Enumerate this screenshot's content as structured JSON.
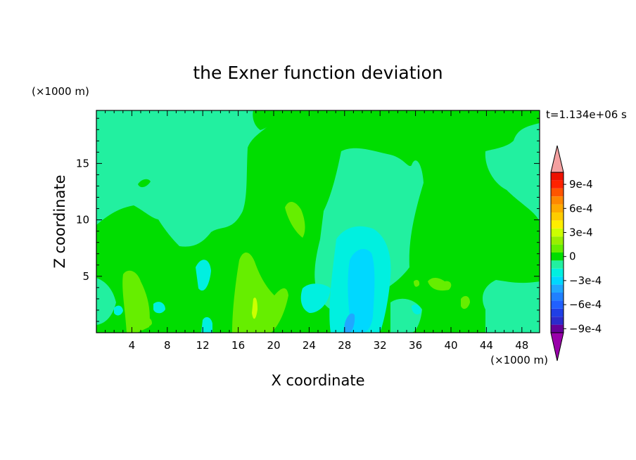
{
  "chart_data": {
    "type": "heatmap",
    "title": "the Exner function deviation",
    "xlabel": "X coordinate",
    "ylabel": "Z coordinate",
    "x_unit": "(×1000 m)",
    "y_unit": "(×1000 m)",
    "time_label": "t=1.134e+06 s",
    "xlim": [
      0,
      50
    ],
    "ylim": [
      0,
      19.7
    ],
    "x_ticks": [
      4,
      8,
      12,
      16,
      20,
      24,
      28,
      32,
      36,
      40,
      44,
      48
    ],
    "y_ticks": [
      5,
      10,
      15
    ],
    "colorbar": {
      "levels": [
        -0.0009,
        -0.0008,
        -0.0007,
        -0.0006,
        -0.0005,
        -0.0004,
        -0.0003,
        -0.0002,
        -0.0001,
        0,
        0.0001,
        0.0002,
        0.0003,
        0.0004,
        0.0005,
        0.0006,
        0.0007,
        0.0008,
        0.0009,
        0.001
      ],
      "colors": [
        "#660099",
        "#2b2bcc",
        "#1f3fe6",
        "#2060ff",
        "#2080ff",
        "#20a8ff",
        "#00d8ff",
        "#00f0e0",
        "#22f0a0",
        "#00dd00",
        "#66ee00",
        "#99ee00",
        "#ccff00",
        "#ffee00",
        "#ffcc00",
        "#ffaa00",
        "#ff8800",
        "#ff5500",
        "#ff2200",
        "#ee1100"
      ],
      "under_color": "#9900aa",
      "over_color": "#f4a0a0",
      "tick_labels": [
        "9e-4",
        "6e-4",
        "3e-4",
        "0",
        "−3e-4",
        "−6e-4",
        "−9e-4"
      ]
    }
  }
}
